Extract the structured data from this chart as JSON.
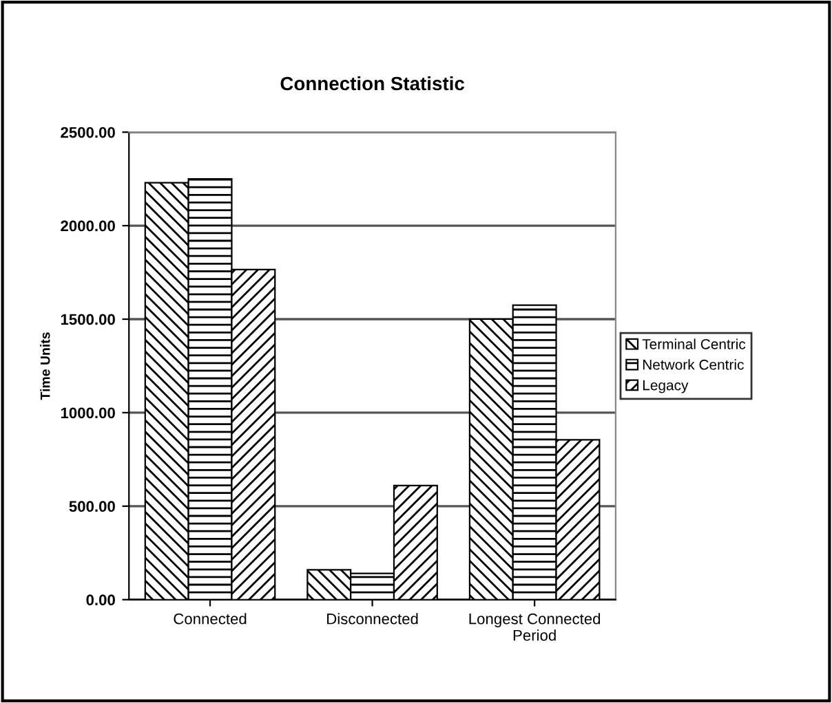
{
  "chart_data": {
    "type": "bar",
    "title": "Connection Statistic",
    "ylabel": "Time Units",
    "categories": [
      "Connected",
      "Disconnected",
      "Longest Connected\nPeriod"
    ],
    "series": [
      {
        "name": "Terminal Centric",
        "color": "#000000",
        "values": [
          2230,
          160,
          1500
        ]
      },
      {
        "name": "Network Centric",
        "color": "#000000",
        "values": [
          2250,
          140,
          1575
        ]
      },
      {
        "name": "Legacy",
        "color": "#000000",
        "values": [
          1765,
          610,
          855
        ]
      }
    ],
    "ylim": [
      0,
      2500
    ],
    "yticks": [
      {
        "value": 0,
        "label": "0.00"
      },
      {
        "value": 500,
        "label": "500.00"
      },
      {
        "value": 1000,
        "label": "1000.00"
      },
      {
        "value": 1500,
        "label": "1500.00"
      },
      {
        "value": 2000,
        "label": "2000.00"
      },
      {
        "value": 2500,
        "label": "2500.00"
      }
    ],
    "grid": "y",
    "legend": "right"
  }
}
